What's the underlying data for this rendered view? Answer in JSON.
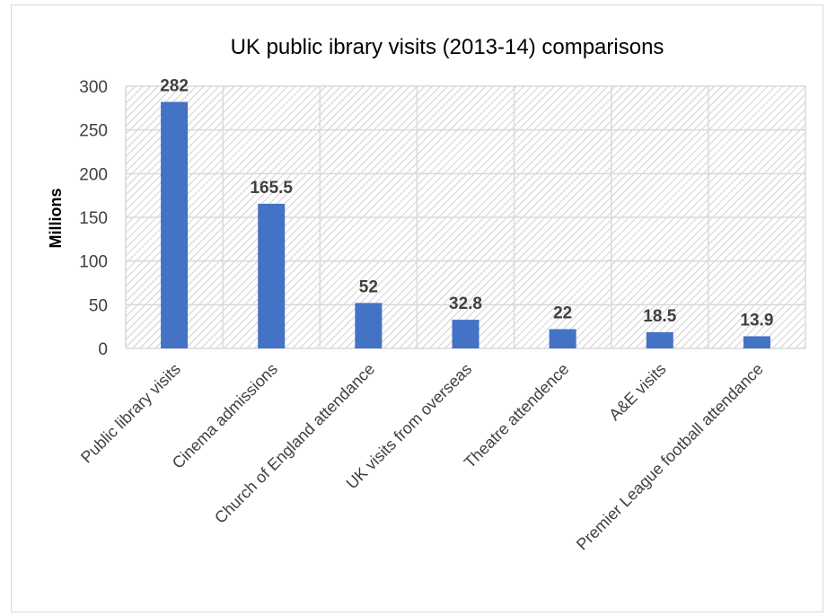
{
  "chart_data": {
    "type": "bar",
    "title": "UK public ibrary visits (2013-14) comparisons",
    "xlabel": "",
    "ylabel": "Millions",
    "categories": [
      "Public library visits",
      "Cinema admissions",
      "Church of England attendance",
      "UK visits from overseas",
      "Theatre attendence",
      "A&E visits",
      "Premier League football attendance"
    ],
    "values": [
      282,
      165.5,
      52,
      32.8,
      22,
      18.5,
      13.9
    ],
    "data_labels": [
      "282",
      "165.5",
      "52",
      "32.8",
      "22",
      "18.5",
      "13.9"
    ],
    "ylim": [
      0,
      300
    ],
    "yticks": [
      0,
      50,
      100,
      150,
      200,
      250,
      300
    ],
    "grid": true,
    "plot_area_pattern": "diagonal-hatch",
    "bar_color": "#4472C4",
    "legend": "none"
  }
}
